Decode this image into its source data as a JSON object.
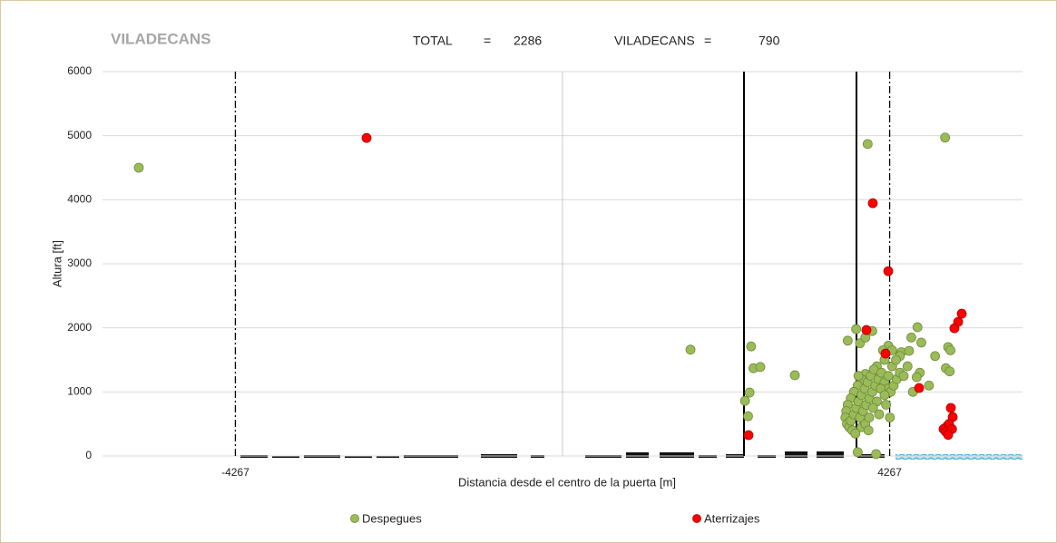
{
  "chart_data": {
    "type": "scatter",
    "title": "VILADECANS",
    "header": [
      "TOTAL",
      "=",
      "2286",
      "VILADECANS",
      "=",
      "790"
    ],
    "x_label": "Distancia desde el centro de la puerta [m]",
    "y_label": "Altura [ft]",
    "xlim": [
      -6000,
      6000
    ],
    "xticks": [
      -4267,
      4267
    ],
    "ylim": [
      0,
      6000
    ],
    "yticks": [
      0,
      1000,
      2000,
      3000,
      4000,
      5000,
      6000
    ],
    "vlines": [
      2367,
      3834
    ],
    "grid": true,
    "legend": "bottom",
    "series": [
      {
        "name": "Despegues",
        "color": "#9bbb59",
        "x": [
          -5527,
          1669,
          2460,
          2490,
          2580,
          2380,
          2440,
          2420,
          3030,
          3980,
          4990,
          3720,
          3830,
          3880,
          3950,
          4040,
          4250,
          4420,
          4550,
          4630,
          4680,
          4860,
          4660,
          4620,
          4780,
          4570,
          5000,
          5050,
          5030,
          5060,
          4520,
          4400,
          4300,
          4200,
          4100,
          4050,
          3950,
          3900,
          3850,
          3800,
          3760,
          3720,
          3700,
          3690,
          3710,
          3740,
          3780,
          3820,
          3850,
          4090,
          3760,
          3800,
          3830,
          3860,
          3900,
          3940,
          3980,
          4020,
          4060,
          3880,
          3920,
          3960,
          4000,
          4040,
          4080,
          4120,
          4160,
          4200,
          4240,
          4280,
          4320,
          4360,
          4400,
          4450,
          4500,
          3900,
          3950,
          4000,
          3860,
          4300,
          4150,
          4100,
          4200,
          4350,
          4250,
          4220,
          4130,
          4050,
          3990,
          4180,
          4270
        ],
        "values": [
          4500,
          1660,
          1710,
          1370,
          1390,
          860,
          990,
          620,
          1260,
          4870,
          4970,
          1800,
          1980,
          1760,
          1850,
          1950,
          1720,
          1620,
          1850,
          2010,
          1770,
          1560,
          1300,
          1230,
          1100,
          1000,
          1370,
          1320,
          1700,
          1650,
          1640,
          1560,
          1650,
          1500,
          1400,
          1300,
          1280,
          1200,
          1100,
          1000,
          900,
          800,
          700,
          600,
          500,
          450,
          400,
          350,
          60,
          30,
          550,
          650,
          750,
          850,
          950,
          1050,
          1150,
          1250,
          1350,
          600,
          700,
          800,
          900,
          1000,
          1100,
          1200,
          1300,
          1150,
          1050,
          1000,
          1100,
          1200,
          1300,
          1250,
          1400,
          450,
          500,
          600,
          1250,
          1400,
          1050,
          850,
          950,
          1500,
          1250,
          800,
          650,
          750,
          400,
          1650,
          600
        ]
      },
      {
        "name": "Aterrizajes",
        "color": "#ff0000",
        "x": [
          -2556,
          2426,
          3964,
          4047,
          4249,
          4213,
          4651,
          5207,
          5160,
          5112,
          5065,
          5089,
          5018,
          4970,
          5041,
          5000,
          5080,
          5030
        ],
        "values": [
          4965,
          325,
          1966,
          3946,
          2885,
          1598,
          1061,
          2221,
          2093,
          1994,
          750,
          608,
          467,
          420,
          500,
          380,
          420,
          330
        ]
      }
    ]
  }
}
